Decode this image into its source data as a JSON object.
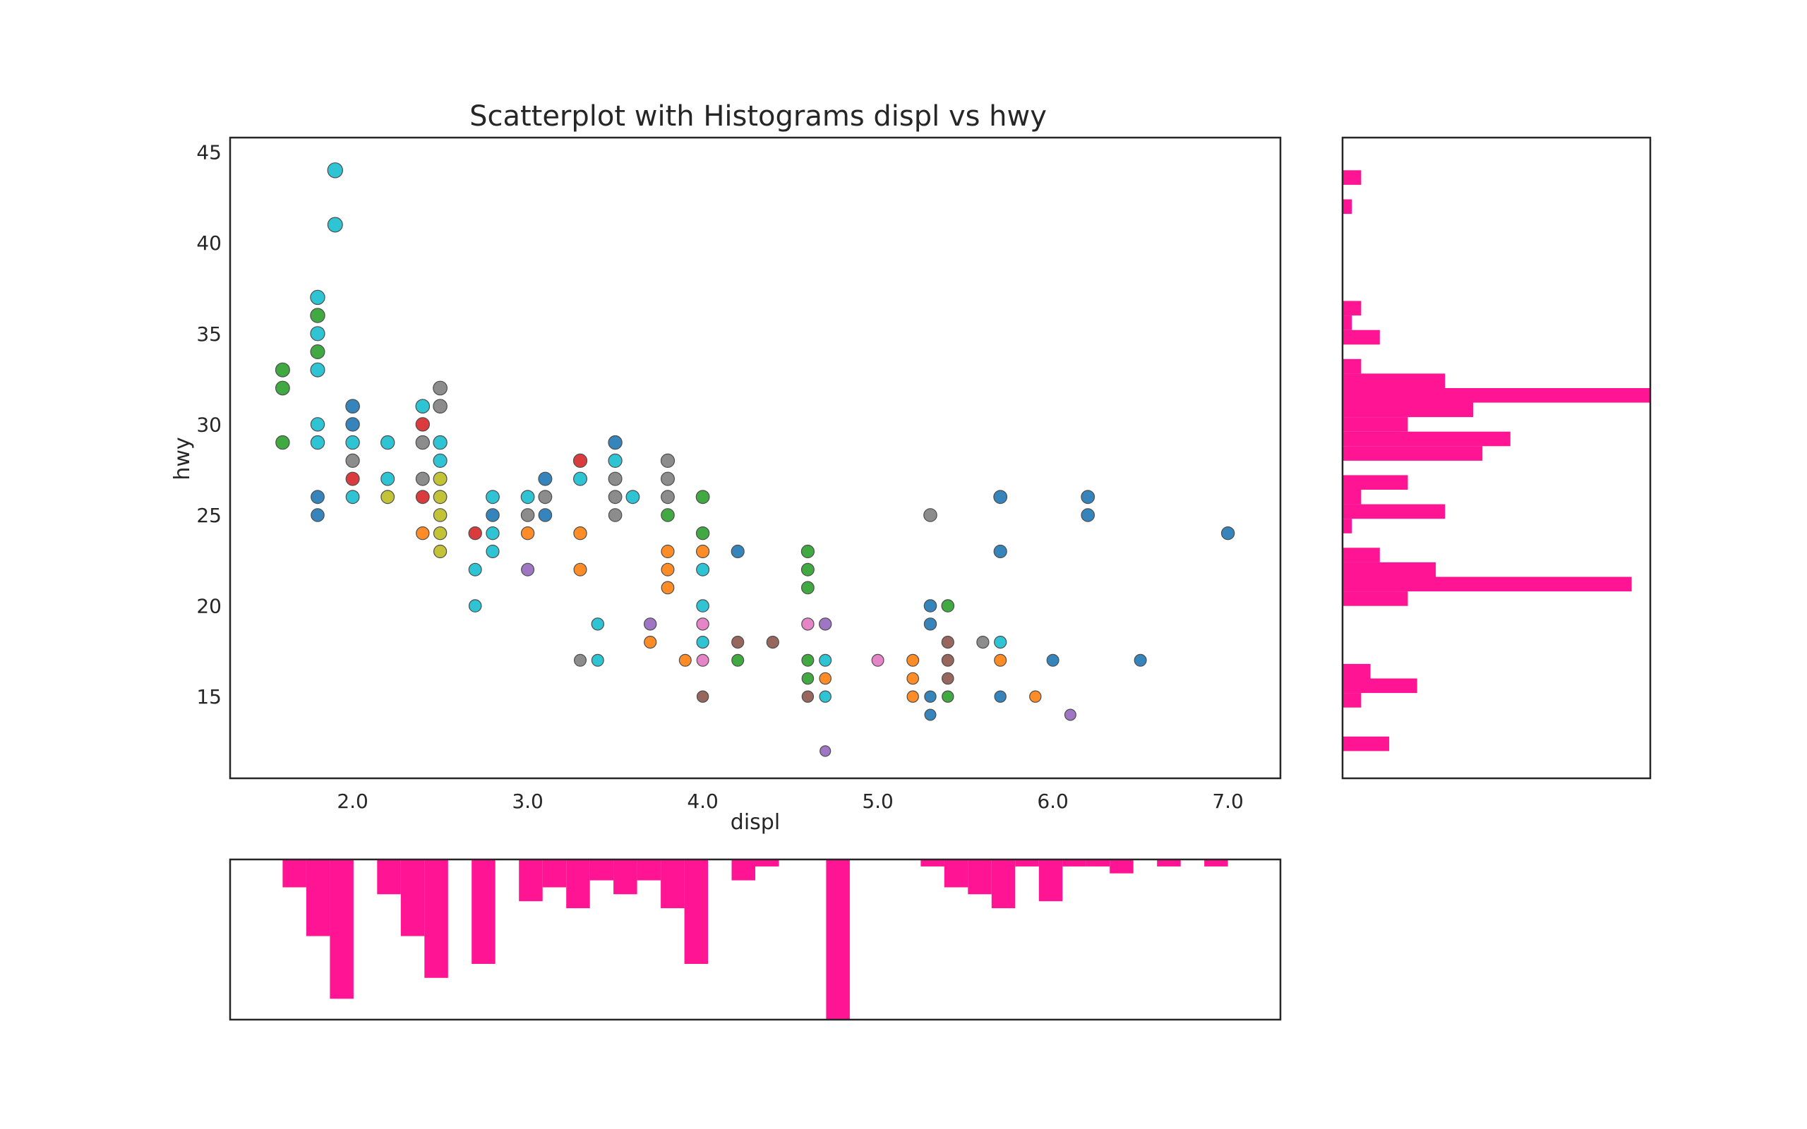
{
  "colors": {
    "hist": "#ff1493",
    "frame": "#262626",
    "marker_edge": "#4d4d4d"
  },
  "chart_data": [
    {
      "type": "scatter",
      "title": "Scatterplot with Histograms displ vs hwy",
      "xlabel": "displ",
      "ylabel": "hwy",
      "xlim": [
        1.3,
        7.3
      ],
      "ylim": [
        10.5,
        45.8
      ],
      "xticks": [
        2.0,
        3.0,
        4.0,
        5.0,
        6.0,
        7.0
      ],
      "xtick_labels": [
        "2.0",
        "3.0",
        "4.0",
        "5.0",
        "6.0",
        "7.0"
      ],
      "yticks": [
        15,
        20,
        25,
        30,
        35,
        40,
        45
      ],
      "ytick_labels": [
        "15",
        "20",
        "25",
        "30",
        "35",
        "40",
        "45"
      ],
      "grid": false,
      "points": [
        {
          "x": 1.9,
          "y": 44,
          "color": "#17becf"
        },
        {
          "x": 1.9,
          "y": 41,
          "color": "#17becf"
        },
        {
          "x": 1.8,
          "y": 37,
          "color": "#17becf"
        },
        {
          "x": 1.8,
          "y": 36,
          "color": "#2ca02c"
        },
        {
          "x": 1.8,
          "y": 35,
          "color": "#17becf"
        },
        {
          "x": 1.8,
          "y": 34,
          "color": "#2ca02c"
        },
        {
          "x": 1.8,
          "y": 33,
          "color": "#17becf"
        },
        {
          "x": 1.6,
          "y": 33,
          "color": "#2ca02c"
        },
        {
          "x": 1.6,
          "y": 32,
          "color": "#2ca02c"
        },
        {
          "x": 1.6,
          "y": 29,
          "color": "#2ca02c"
        },
        {
          "x": 1.8,
          "y": 30,
          "color": "#17becf"
        },
        {
          "x": 1.8,
          "y": 29,
          "color": "#17becf"
        },
        {
          "x": 1.8,
          "y": 26,
          "color": "#1f77b4"
        },
        {
          "x": 1.8,
          "y": 25,
          "color": "#1f77b4"
        },
        {
          "x": 2.0,
          "y": 31,
          "color": "#1f77b4"
        },
        {
          "x": 2.0,
          "y": 30,
          "color": "#1f77b4"
        },
        {
          "x": 2.0,
          "y": 29,
          "color": "#17becf"
        },
        {
          "x": 2.0,
          "y": 28,
          "color": "#7f7f7f"
        },
        {
          "x": 2.0,
          "y": 27,
          "color": "#d62728"
        },
        {
          "x": 2.0,
          "y": 26,
          "color": "#17becf"
        },
        {
          "x": 2.2,
          "y": 29,
          "color": "#17becf"
        },
        {
          "x": 2.2,
          "y": 27,
          "color": "#17becf"
        },
        {
          "x": 2.2,
          "y": 26,
          "color": "#bcbd22"
        },
        {
          "x": 2.4,
          "y": 31,
          "color": "#17becf"
        },
        {
          "x": 2.4,
          "y": 30,
          "color": "#d62728"
        },
        {
          "x": 2.4,
          "y": 29,
          "color": "#7f7f7f"
        },
        {
          "x": 2.4,
          "y": 27,
          "color": "#7f7f7f"
        },
        {
          "x": 2.4,
          "y": 26,
          "color": "#d62728"
        },
        {
          "x": 2.4,
          "y": 24,
          "color": "#ff7f0e"
        },
        {
          "x": 2.5,
          "y": 32,
          "color": "#7f7f7f"
        },
        {
          "x": 2.5,
          "y": 31,
          "color": "#7f7f7f"
        },
        {
          "x": 2.5,
          "y": 29,
          "color": "#17becf"
        },
        {
          "x": 2.5,
          "y": 28,
          "color": "#17becf"
        },
        {
          "x": 2.5,
          "y": 27,
          "color": "#bcbd22"
        },
        {
          "x": 2.5,
          "y": 26,
          "color": "#bcbd22"
        },
        {
          "x": 2.5,
          "y": 25,
          "color": "#bcbd22"
        },
        {
          "x": 2.5,
          "y": 24,
          "color": "#bcbd22"
        },
        {
          "x": 2.5,
          "y": 23,
          "color": "#bcbd22"
        },
        {
          "x": 2.7,
          "y": 24,
          "color": "#d62728"
        },
        {
          "x": 2.7,
          "y": 22,
          "color": "#17becf"
        },
        {
          "x": 2.7,
          "y": 20,
          "color": "#17becf"
        },
        {
          "x": 2.8,
          "y": 26,
          "color": "#17becf"
        },
        {
          "x": 2.8,
          "y": 25,
          "color": "#1f77b4"
        },
        {
          "x": 2.8,
          "y": 24,
          "color": "#17becf"
        },
        {
          "x": 2.8,
          "y": 23,
          "color": "#17becf"
        },
        {
          "x": 3.0,
          "y": 26,
          "color": "#17becf"
        },
        {
          "x": 3.0,
          "y": 25,
          "color": "#7f7f7f"
        },
        {
          "x": 3.0,
          "y": 24,
          "color": "#ff7f0e"
        },
        {
          "x": 3.0,
          "y": 22,
          "color": "#9467bd"
        },
        {
          "x": 3.1,
          "y": 27,
          "color": "#1f77b4"
        },
        {
          "x": 3.1,
          "y": 26,
          "color": "#7f7f7f"
        },
        {
          "x": 3.1,
          "y": 25,
          "color": "#1f77b4"
        },
        {
          "x": 3.3,
          "y": 28,
          "color": "#d62728"
        },
        {
          "x": 3.3,
          "y": 27,
          "color": "#17becf"
        },
        {
          "x": 3.3,
          "y": 24,
          "color": "#ff7f0e"
        },
        {
          "x": 3.3,
          "y": 22,
          "color": "#ff7f0e"
        },
        {
          "x": 3.3,
          "y": 17,
          "color": "#7f7f7f"
        },
        {
          "x": 3.4,
          "y": 19,
          "color": "#17becf"
        },
        {
          "x": 3.4,
          "y": 17,
          "color": "#17becf"
        },
        {
          "x": 3.5,
          "y": 29,
          "color": "#1f77b4"
        },
        {
          "x": 3.5,
          "y": 28,
          "color": "#17becf"
        },
        {
          "x": 3.5,
          "y": 27,
          "color": "#7f7f7f"
        },
        {
          "x": 3.5,
          "y": 26,
          "color": "#7f7f7f"
        },
        {
          "x": 3.5,
          "y": 25,
          "color": "#7f7f7f"
        },
        {
          "x": 3.6,
          "y": 26,
          "color": "#17becf"
        },
        {
          "x": 3.7,
          "y": 19,
          "color": "#9467bd"
        },
        {
          "x": 3.7,
          "y": 18,
          "color": "#ff7f0e"
        },
        {
          "x": 3.8,
          "y": 28,
          "color": "#7f7f7f"
        },
        {
          "x": 3.8,
          "y": 27,
          "color": "#7f7f7f"
        },
        {
          "x": 3.8,
          "y": 26,
          "color": "#7f7f7f"
        },
        {
          "x": 3.8,
          "y": 25,
          "color": "#2ca02c"
        },
        {
          "x": 3.8,
          "y": 23,
          "color": "#ff7f0e"
        },
        {
          "x": 3.8,
          "y": 22,
          "color": "#ff7f0e"
        },
        {
          "x": 3.8,
          "y": 21,
          "color": "#ff7f0e"
        },
        {
          "x": 3.9,
          "y": 17,
          "color": "#ff7f0e"
        },
        {
          "x": 4.0,
          "y": 26,
          "color": "#2ca02c"
        },
        {
          "x": 4.0,
          "y": 24,
          "color": "#2ca02c"
        },
        {
          "x": 4.0,
          "y": 23,
          "color": "#ff7f0e"
        },
        {
          "x": 4.0,
          "y": 22,
          "color": "#17becf"
        },
        {
          "x": 4.0,
          "y": 20,
          "color": "#17becf"
        },
        {
          "x": 4.0,
          "y": 19,
          "color": "#e377c2"
        },
        {
          "x": 4.0,
          "y": 18,
          "color": "#17becf"
        },
        {
          "x": 4.0,
          "y": 17,
          "color": "#e377c2"
        },
        {
          "x": 4.0,
          "y": 15,
          "color": "#8c564b"
        },
        {
          "x": 4.2,
          "y": 23,
          "color": "#1f77b4"
        },
        {
          "x": 4.2,
          "y": 18,
          "color": "#8c564b"
        },
        {
          "x": 4.2,
          "y": 17,
          "color": "#2ca02c"
        },
        {
          "x": 4.4,
          "y": 18,
          "color": "#8c564b"
        },
        {
          "x": 4.6,
          "y": 23,
          "color": "#2ca02c"
        },
        {
          "x": 4.6,
          "y": 22,
          "color": "#2ca02c"
        },
        {
          "x": 4.6,
          "y": 21,
          "color": "#2ca02c"
        },
        {
          "x": 4.6,
          "y": 19,
          "color": "#e377c2"
        },
        {
          "x": 4.6,
          "y": 17,
          "color": "#2ca02c"
        },
        {
          "x": 4.6,
          "y": 16,
          "color": "#2ca02c"
        },
        {
          "x": 4.6,
          "y": 15,
          "color": "#8c564b"
        },
        {
          "x": 4.7,
          "y": 19,
          "color": "#9467bd"
        },
        {
          "x": 4.7,
          "y": 17,
          "color": "#17becf"
        },
        {
          "x": 4.7,
          "y": 16,
          "color": "#ff7f0e"
        },
        {
          "x": 4.7,
          "y": 15,
          "color": "#17becf"
        },
        {
          "x": 4.7,
          "y": 12,
          "color": "#9467bd"
        },
        {
          "x": 5.0,
          "y": 17,
          "color": "#e377c2"
        },
        {
          "x": 5.2,
          "y": 17,
          "color": "#ff7f0e"
        },
        {
          "x": 5.2,
          "y": 16,
          "color": "#ff7f0e"
        },
        {
          "x": 5.2,
          "y": 15,
          "color": "#ff7f0e"
        },
        {
          "x": 5.3,
          "y": 25,
          "color": "#7f7f7f"
        },
        {
          "x": 5.3,
          "y": 20,
          "color": "#1f77b4"
        },
        {
          "x": 5.3,
          "y": 19,
          "color": "#1f77b4"
        },
        {
          "x": 5.3,
          "y": 15,
          "color": "#1f77b4"
        },
        {
          "x": 5.3,
          "y": 14,
          "color": "#1f77b4"
        },
        {
          "x": 5.4,
          "y": 20,
          "color": "#2ca02c"
        },
        {
          "x": 5.4,
          "y": 18,
          "color": "#8c564b"
        },
        {
          "x": 5.4,
          "y": 17,
          "color": "#8c564b"
        },
        {
          "x": 5.4,
          "y": 16,
          "color": "#8c564b"
        },
        {
          "x": 5.4,
          "y": 15,
          "color": "#2ca02c"
        },
        {
          "x": 5.6,
          "y": 18,
          "color": "#7f7f7f"
        },
        {
          "x": 5.7,
          "y": 26,
          "color": "#1f77b4"
        },
        {
          "x": 5.7,
          "y": 23,
          "color": "#1f77b4"
        },
        {
          "x": 5.7,
          "y": 18,
          "color": "#17becf"
        },
        {
          "x": 5.7,
          "y": 17,
          "color": "#ff7f0e"
        },
        {
          "x": 5.7,
          "y": 15,
          "color": "#1f77b4"
        },
        {
          "x": 5.9,
          "y": 15,
          "color": "#ff7f0e"
        },
        {
          "x": 6.0,
          "y": 17,
          "color": "#1f77b4"
        },
        {
          "x": 6.1,
          "y": 14,
          "color": "#9467bd"
        },
        {
          "x": 6.2,
          "y": 26,
          "color": "#1f77b4"
        },
        {
          "x": 6.2,
          "y": 25,
          "color": "#1f77b4"
        },
        {
          "x": 6.5,
          "y": 17,
          "color": "#1f77b4"
        },
        {
          "x": 7.0,
          "y": 24,
          "color": "#1f77b4"
        }
      ]
    },
    {
      "type": "bar",
      "orientation": "horizontal",
      "variable": "hwy",
      "bins": 40,
      "range": [
        12,
        44
      ],
      "ylim": [
        10.5,
        45.8
      ],
      "xlim": [
        0,
        33
      ],
      "values": [
        5,
        0,
        0,
        2,
        8,
        3,
        0,
        0,
        0,
        0,
        7,
        31,
        10,
        4,
        0,
        1,
        11,
        2,
        7,
        0,
        15,
        18,
        7,
        14,
        33,
        11,
        2,
        0,
        4,
        1,
        2,
        0,
        0,
        0,
        0,
        0,
        0,
        1,
        0,
        2
      ]
    },
    {
      "type": "bar",
      "orientation": "vertical-inverted",
      "variable": "displ",
      "bins": 40,
      "range": [
        1.6,
        7.0
      ],
      "xlim": [
        1.3,
        7.3
      ],
      "ylim": [
        0,
        23
      ],
      "values": [
        4,
        11,
        20,
        0,
        5,
        11,
        17,
        0,
        15,
        0,
        6,
        4,
        7,
        3,
        5,
        3,
        7,
        15,
        0,
        3,
        1,
        0,
        0,
        23,
        0,
        0,
        0,
        1,
        4,
        5,
        7,
        1,
        6,
        1,
        1,
        2,
        0,
        1,
        0,
        1
      ]
    }
  ]
}
